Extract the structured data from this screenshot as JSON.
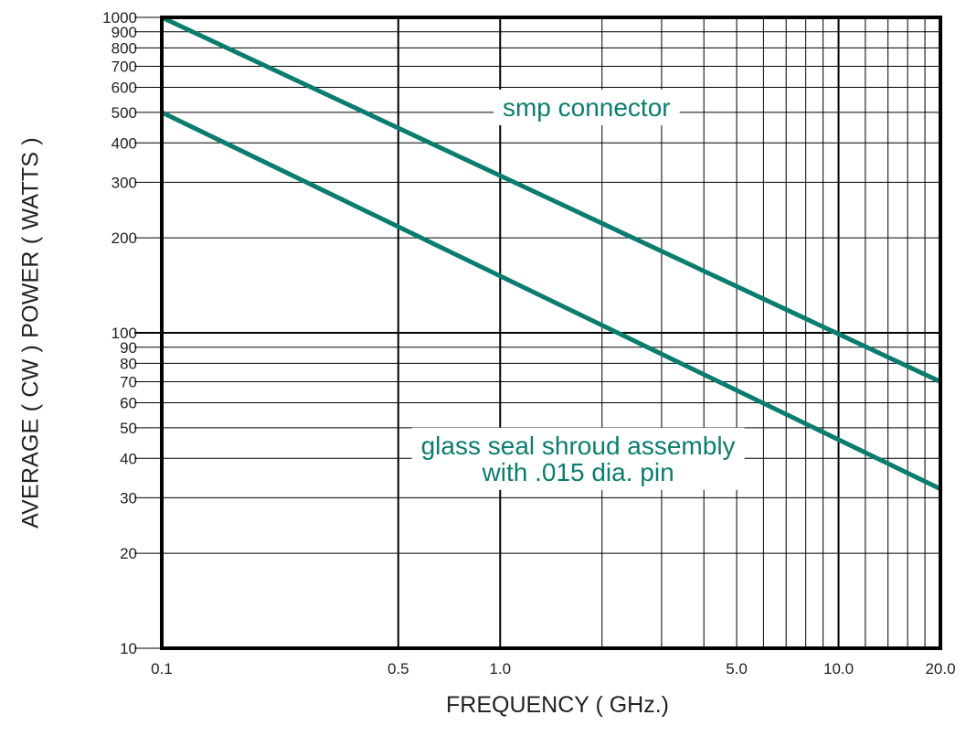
{
  "chart_data": {
    "type": "line",
    "xlabel": "FREQUENCY ( GHz.)",
    "ylabel": "AVERAGE ( CW ) POWER ( WATTS )",
    "x_scale": "log",
    "y_scale": "log",
    "xlim": [
      0.1,
      20.0
    ],
    "ylim": [
      10,
      1000
    ],
    "grid": true,
    "x_ticks": [
      {
        "value": 0.1,
        "label": "0.1"
      },
      {
        "value": 0.5,
        "label": "0.5"
      },
      {
        "value": 1.0,
        "label": "1.0"
      },
      {
        "value": 5.0,
        "label": "5.0"
      },
      {
        "value": 10.0,
        "label": "10.0"
      },
      {
        "value": 20.0,
        "label": "20.0"
      }
    ],
    "y_ticks": [
      {
        "value": 10,
        "label": "10"
      },
      {
        "value": 20,
        "label": "20"
      },
      {
        "value": 30,
        "label": "30"
      },
      {
        "value": 40,
        "label": "40"
      },
      {
        "value": 50,
        "label": "50"
      },
      {
        "value": 60,
        "label": "60"
      },
      {
        "value": 70,
        "label": "70"
      },
      {
        "value": 80,
        "label": "80"
      },
      {
        "value": 90,
        "label": "90"
      },
      {
        "value": 100,
        "label": "100"
      },
      {
        "value": 200,
        "label": "200"
      },
      {
        "value": 300,
        "label": "300"
      },
      {
        "value": 400,
        "label": "400"
      },
      {
        "value": 500,
        "label": "500"
      },
      {
        "value": 600,
        "label": "600"
      },
      {
        "value": 700,
        "label": "700"
      },
      {
        "value": 800,
        "label": "800"
      },
      {
        "value": 900,
        "label": "900"
      },
      {
        "value": 1000,
        "label": "1000"
      }
    ],
    "x_grid_values": [
      0.1,
      0.5,
      1.0,
      2.0,
      3.0,
      4.0,
      5.0,
      6.0,
      7.0,
      8.0,
      9.0,
      10.0,
      12.0,
      14.0,
      16.0,
      18.0,
      20.0
    ],
    "x_grid_major": [
      0.5,
      1.0,
      10.0
    ],
    "y_grid_major": [
      100
    ],
    "series": [
      {
        "label_lines": [
          "smp connector"
        ],
        "x": [
          0.1,
          20.0
        ],
        "y": [
          1000,
          70
        ],
        "color": "#0b7d6f"
      },
      {
        "label_lines": [
          "glass seal shroud assembly",
          "with .015 dia. pin"
        ],
        "x": [
          0.1,
          20.0
        ],
        "y": [
          500,
          32
        ],
        "color": "#0b7d6f"
      }
    ]
  }
}
